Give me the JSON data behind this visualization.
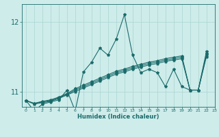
{
  "xlabel": "Humidex (Indice chaleur)",
  "bg_color": "#ceecea",
  "line_color": "#1a6b6b",
  "grid_color": "#afd8d5",
  "xlim": [
    -0.5,
    23
  ],
  "ylim": [
    10.78,
    12.25
  ],
  "yticks": [
    11,
    12
  ],
  "xticks": [
    0,
    1,
    2,
    3,
    4,
    5,
    6,
    7,
    8,
    9,
    10,
    11,
    12,
    13,
    14,
    15,
    16,
    17,
    18,
    19,
    20,
    21,
    22,
    23
  ],
  "series": [
    [
      10.87,
      10.72,
      10.82,
      10.85,
      10.88,
      11.02,
      10.72,
      11.28,
      11.42,
      11.62,
      11.52,
      11.75,
      12.1,
      11.52,
      11.27,
      11.32,
      11.27,
      11.07,
      11.32,
      11.07,
      11.02,
      11.02,
      11.57
    ],
    [
      10.87,
      10.82,
      10.84,
      10.86,
      10.9,
      10.95,
      11.0,
      11.05,
      11.1,
      11.15,
      11.2,
      11.25,
      11.28,
      11.32,
      11.35,
      11.38,
      11.4,
      11.43,
      11.45,
      11.47,
      11.02,
      11.02,
      11.5
    ],
    [
      10.87,
      10.83,
      10.85,
      10.87,
      10.91,
      10.96,
      11.02,
      11.07,
      11.12,
      11.17,
      11.22,
      11.27,
      11.3,
      11.34,
      11.37,
      11.4,
      11.42,
      11.45,
      11.47,
      11.49,
      11.02,
      11.02,
      11.52
    ],
    [
      10.87,
      10.83,
      10.86,
      10.88,
      10.92,
      10.97,
      11.04,
      11.09,
      11.14,
      11.19,
      11.24,
      11.29,
      11.32,
      11.36,
      11.39,
      11.42,
      11.44,
      11.47,
      11.49,
      11.51,
      11.02,
      11.02,
      11.54
    ]
  ]
}
